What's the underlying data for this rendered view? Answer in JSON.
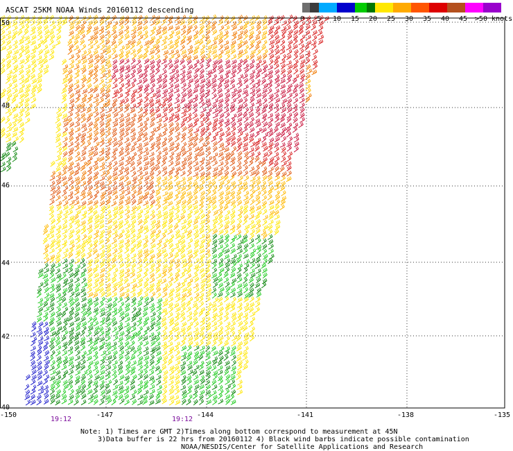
{
  "title": "ASCAT 25KM NOAA Winds 20160112 descending",
  "legend": {
    "colors": [
      "#6e6e6e",
      "#3c3c3c",
      "#00aaff",
      "#0000cc",
      "#00cc00",
      "#007700",
      "#ffe800",
      "#ffaa00",
      "#ff5500",
      "#dd0000",
      "#b4501e",
      "#ff00ff",
      "#9900cc"
    ],
    "labels": [
      "0",
      "5",
      "10",
      "15",
      "20",
      "25",
      "30",
      "35",
      "40",
      "45",
      ">50 knots"
    ]
  },
  "map": {
    "lat_labels": [
      "50",
      "48",
      "46",
      "44",
      "42",
      "40"
    ],
    "lon_labels": [
      "-150",
      "-147",
      "-144",
      "-141",
      "-138",
      "-135"
    ],
    "times": [
      "19:12",
      "19:12"
    ]
  },
  "notes": {
    "line1": "Note: 1) Times are GMT 2)Times along bottom correspond to measurement at 45N",
    "line2": "3)Data buffer is 22 hrs from 20160112 4) Black wind barbs indicate possible contamination",
    "line3": "NOAA/NESDIS/Center for Satellite Applications and Research"
  }
}
